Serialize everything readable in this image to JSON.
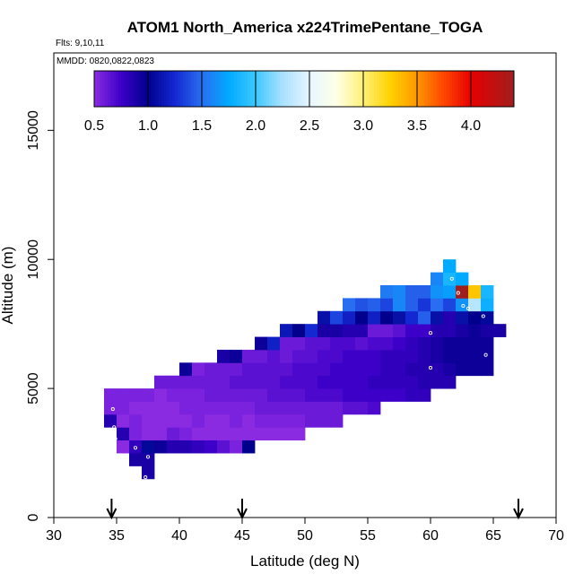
{
  "chart_data": {
    "type": "heatmap",
    "title": "ATOM1 North_America x224TrimePentane_TOGA",
    "subtitle_flights": "Flts: 9,10,11",
    "subtitle_dates": "MMDD: 0820,0822,0823",
    "xlabel": "Latitude (deg N)",
    "ylabel": "Altitude (m)",
    "xlim": [
      30,
      70
    ],
    "ylim": [
      0,
      18000
    ],
    "x_ticks": [
      "30",
      "35",
      "40",
      "45",
      "50",
      "55",
      "60",
      "65",
      "70"
    ],
    "y_ticks": [
      "0",
      "5000",
      "10000",
      "15000"
    ],
    "grid": false,
    "colorbar": {
      "range": [
        0.5,
        4.4
      ],
      "ticks": [
        "0.5",
        "1.0",
        "1.5",
        "2.0",
        "2.5",
        "3.0",
        "3.5",
        "4.0"
      ],
      "placement": "top inset"
    },
    "x_arrows": [
      34.6,
      45.0,
      67.0
    ],
    "rows": [
      {
        "alt": 1500,
        "cells": [
          [
            37,
            0.9
          ]
        ]
      },
      {
        "alt": 2000,
        "cells": [
          [
            36,
            0.9
          ],
          [
            37,
            0.9
          ]
        ]
      },
      {
        "alt": 2500,
        "cells": [
          [
            35,
            0.5
          ],
          [
            36,
            0.8
          ],
          [
            37,
            1.05
          ],
          [
            38,
            0.95
          ],
          [
            39,
            0.85
          ],
          [
            40,
            0.85
          ],
          [
            41,
            0.8
          ],
          [
            42,
            0.75
          ],
          [
            43,
            0.65
          ],
          [
            44,
            0.55
          ],
          [
            45,
            1.0
          ]
        ]
      },
      {
        "alt": 3000,
        "cells": [
          [
            35,
            0.85
          ],
          [
            36,
            0.55
          ],
          [
            37,
            0.5
          ],
          [
            38,
            0.5
          ],
          [
            39,
            0.6
          ],
          [
            40,
            0.55
          ],
          [
            41,
            0.5
          ],
          [
            42,
            0.5
          ],
          [
            43,
            0.5
          ],
          [
            44,
            0.5
          ],
          [
            45,
            0.5
          ],
          [
            46,
            0.5
          ],
          [
            47,
            0.5
          ],
          [
            48,
            0.5
          ],
          [
            49,
            0.5
          ]
        ]
      },
      {
        "alt": 3500,
        "cells": [
          [
            34,
            0.85
          ],
          [
            35,
            0.5
          ],
          [
            36,
            0.55
          ],
          [
            37,
            0.5
          ],
          [
            38,
            0.5
          ],
          [
            39,
            0.5
          ],
          [
            40,
            0.5
          ],
          [
            41,
            0.55
          ],
          [
            42,
            0.5
          ],
          [
            43,
            0.5
          ],
          [
            44,
            0.55
          ],
          [
            45,
            0.5
          ],
          [
            46,
            0.55
          ],
          [
            47,
            0.55
          ],
          [
            48,
            0.55
          ],
          [
            49,
            0.55
          ],
          [
            50,
            0.6
          ],
          [
            51,
            0.6
          ],
          [
            52,
            0.6
          ]
        ]
      },
      {
        "alt": 4000,
        "cells": [
          [
            34,
            0.55
          ],
          [
            35,
            0.55
          ],
          [
            36,
            0.5
          ],
          [
            37,
            0.5
          ],
          [
            38,
            0.5
          ],
          [
            39,
            0.5
          ],
          [
            40,
            0.55
          ],
          [
            41,
            0.55
          ],
          [
            42,
            0.55
          ],
          [
            43,
            0.55
          ],
          [
            44,
            0.55
          ],
          [
            45,
            0.55
          ],
          [
            46,
            0.6
          ],
          [
            47,
            0.6
          ],
          [
            48,
            0.6
          ],
          [
            49,
            0.6
          ],
          [
            50,
            0.6
          ],
          [
            51,
            0.6
          ],
          [
            52,
            0.6
          ],
          [
            53,
            0.65
          ],
          [
            54,
            0.65
          ],
          [
            55,
            0.7
          ]
        ]
      },
      {
        "alt": 4500,
        "cells": [
          [
            34,
            0.55
          ],
          [
            35,
            0.55
          ],
          [
            36,
            0.55
          ],
          [
            37,
            0.55
          ],
          [
            38,
            0.5
          ],
          [
            39,
            0.55
          ],
          [
            40,
            0.55
          ],
          [
            41,
            0.55
          ],
          [
            42,
            0.6
          ],
          [
            43,
            0.6
          ],
          [
            44,
            0.6
          ],
          [
            45,
            0.6
          ],
          [
            46,
            0.6
          ],
          [
            47,
            0.65
          ],
          [
            48,
            0.65
          ],
          [
            49,
            0.65
          ],
          [
            50,
            0.7
          ],
          [
            51,
            0.7
          ],
          [
            52,
            0.7
          ],
          [
            53,
            0.75
          ],
          [
            54,
            0.75
          ],
          [
            55,
            0.75
          ],
          [
            56,
            0.75
          ],
          [
            57,
            0.75
          ],
          [
            58,
            0.8
          ],
          [
            59,
            0.8
          ]
        ]
      },
      {
        "alt": 5000,
        "cells": [
          [
            38,
            0.6
          ],
          [
            39,
            0.6
          ],
          [
            40,
            0.6
          ],
          [
            41,
            0.6
          ],
          [
            42,
            0.6
          ],
          [
            43,
            0.6
          ],
          [
            44,
            0.65
          ],
          [
            45,
            0.65
          ],
          [
            46,
            0.65
          ],
          [
            47,
            0.65
          ],
          [
            48,
            0.7
          ],
          [
            49,
            0.7
          ],
          [
            50,
            0.7
          ],
          [
            51,
            0.75
          ],
          [
            52,
            0.75
          ],
          [
            53,
            0.75
          ],
          [
            54,
            0.75
          ],
          [
            55,
            0.8
          ],
          [
            56,
            0.8
          ],
          [
            57,
            0.8
          ],
          [
            58,
            0.8
          ],
          [
            59,
            0.85
          ],
          [
            60,
            0.85
          ],
          [
            61,
            0.85
          ]
        ]
      },
      {
        "alt": 5500,
        "cells": [
          [
            40,
            0.95
          ],
          [
            41,
            0.55
          ],
          [
            42,
            0.6
          ],
          [
            43,
            0.6
          ],
          [
            44,
            0.6
          ],
          [
            45,
            0.65
          ],
          [
            46,
            0.65
          ],
          [
            47,
            0.65
          ],
          [
            48,
            0.65
          ],
          [
            49,
            0.7
          ],
          [
            50,
            0.7
          ],
          [
            51,
            0.7
          ],
          [
            52,
            0.75
          ],
          [
            53,
            0.75
          ],
          [
            54,
            0.75
          ],
          [
            55,
            0.75
          ],
          [
            56,
            0.8
          ],
          [
            57,
            0.8
          ],
          [
            58,
            0.85
          ],
          [
            59,
            0.85
          ],
          [
            60,
            0.85
          ],
          [
            61,
            0.9
          ],
          [
            62,
            0.95
          ],
          [
            63,
            0.95
          ],
          [
            64,
            0.95
          ]
        ]
      },
      {
        "alt": 6000,
        "cells": [
          [
            43,
            0.9
          ],
          [
            44,
            0.95
          ],
          [
            45,
            0.6
          ],
          [
            46,
            0.6
          ],
          [
            47,
            0.65
          ],
          [
            48,
            0.6
          ],
          [
            49,
            0.65
          ],
          [
            50,
            0.65
          ],
          [
            51,
            0.7
          ],
          [
            52,
            0.7
          ],
          [
            53,
            0.75
          ],
          [
            54,
            0.75
          ],
          [
            55,
            0.75
          ],
          [
            56,
            0.8
          ],
          [
            57,
            0.8
          ],
          [
            58,
            0.8
          ],
          [
            59,
            0.85
          ],
          [
            60,
            0.9
          ],
          [
            61,
            0.95
          ],
          [
            62,
            0.95
          ],
          [
            63,
            0.95
          ],
          [
            64,
            0.95
          ]
        ]
      },
      {
        "alt": 6500,
        "cells": [
          [
            46,
            0.95
          ],
          [
            47,
            1.2
          ],
          [
            48,
            0.6
          ],
          [
            49,
            0.6
          ],
          [
            50,
            0.65
          ],
          [
            51,
            0.65
          ],
          [
            52,
            0.7
          ],
          [
            53,
            0.7
          ],
          [
            54,
            0.65
          ],
          [
            55,
            0.7
          ],
          [
            56,
            0.7
          ],
          [
            57,
            0.75
          ],
          [
            58,
            0.8
          ],
          [
            59,
            0.85
          ],
          [
            60,
            0.9
          ],
          [
            61,
            0.95
          ],
          [
            62,
            0.95
          ],
          [
            63,
            0.95
          ],
          [
            64,
            0.95
          ]
        ]
      },
      {
        "alt": 7000,
        "cells": [
          [
            48,
            1.15
          ],
          [
            49,
            1.0
          ],
          [
            50,
            1.25
          ],
          [
            51,
            0.9
          ],
          [
            52,
            0.9
          ],
          [
            53,
            0.85
          ],
          [
            54,
            0.85
          ],
          [
            55,
            0.6
          ],
          [
            56,
            0.6
          ],
          [
            57,
            0.65
          ],
          [
            58,
            0.75
          ],
          [
            59,
            0.75
          ],
          [
            60,
            0.85
          ],
          [
            61,
            0.85
          ],
          [
            62,
            0.9
          ],
          [
            63,
            0.95
          ],
          [
            64,
            0.9
          ],
          [
            65,
            0.9
          ]
        ]
      },
      {
        "alt": 7500,
        "cells": [
          [
            51,
            1.1
          ],
          [
            52,
            1.35
          ],
          [
            53,
            1.2
          ],
          [
            54,
            1.0
          ],
          [
            55,
            1.2
          ],
          [
            56,
            1.0
          ],
          [
            57,
            1.1
          ],
          [
            58,
            1.25
          ],
          [
            59,
            1.45
          ],
          [
            60,
            1.1
          ],
          [
            61,
            0.85
          ],
          [
            62,
            1.1
          ],
          [
            63,
            1.0
          ],
          [
            64,
            1.05
          ]
        ]
      },
      {
        "alt": 8000,
        "cells": [
          [
            53,
            1.5
          ],
          [
            54,
            1.4
          ],
          [
            55,
            1.45
          ],
          [
            56,
            1.35
          ],
          [
            57,
            1.6
          ],
          [
            58,
            1.45
          ],
          [
            59,
            1.3
          ],
          [
            60,
            1.5
          ],
          [
            61,
            1.35
          ],
          [
            62,
            1.65
          ],
          [
            63,
            2.3
          ],
          [
            64,
            1.8
          ]
        ]
      },
      {
        "alt": 8500,
        "cells": [
          [
            56,
            1.55
          ],
          [
            57,
            1.6
          ],
          [
            58,
            1.45
          ],
          [
            59,
            1.45
          ],
          [
            60,
            1.65
          ],
          [
            61,
            1.7
          ],
          [
            62,
            4.4
          ],
          [
            63,
            3.3
          ],
          [
            64,
            1.85
          ]
        ]
      },
      {
        "alt": 9000,
        "cells": [
          [
            60,
            1.6
          ],
          [
            61,
            1.85
          ],
          [
            62,
            1.75
          ]
        ]
      },
      {
        "alt": 9500,
        "cells": [
          [
            61,
            1.75
          ]
        ]
      }
    ]
  }
}
